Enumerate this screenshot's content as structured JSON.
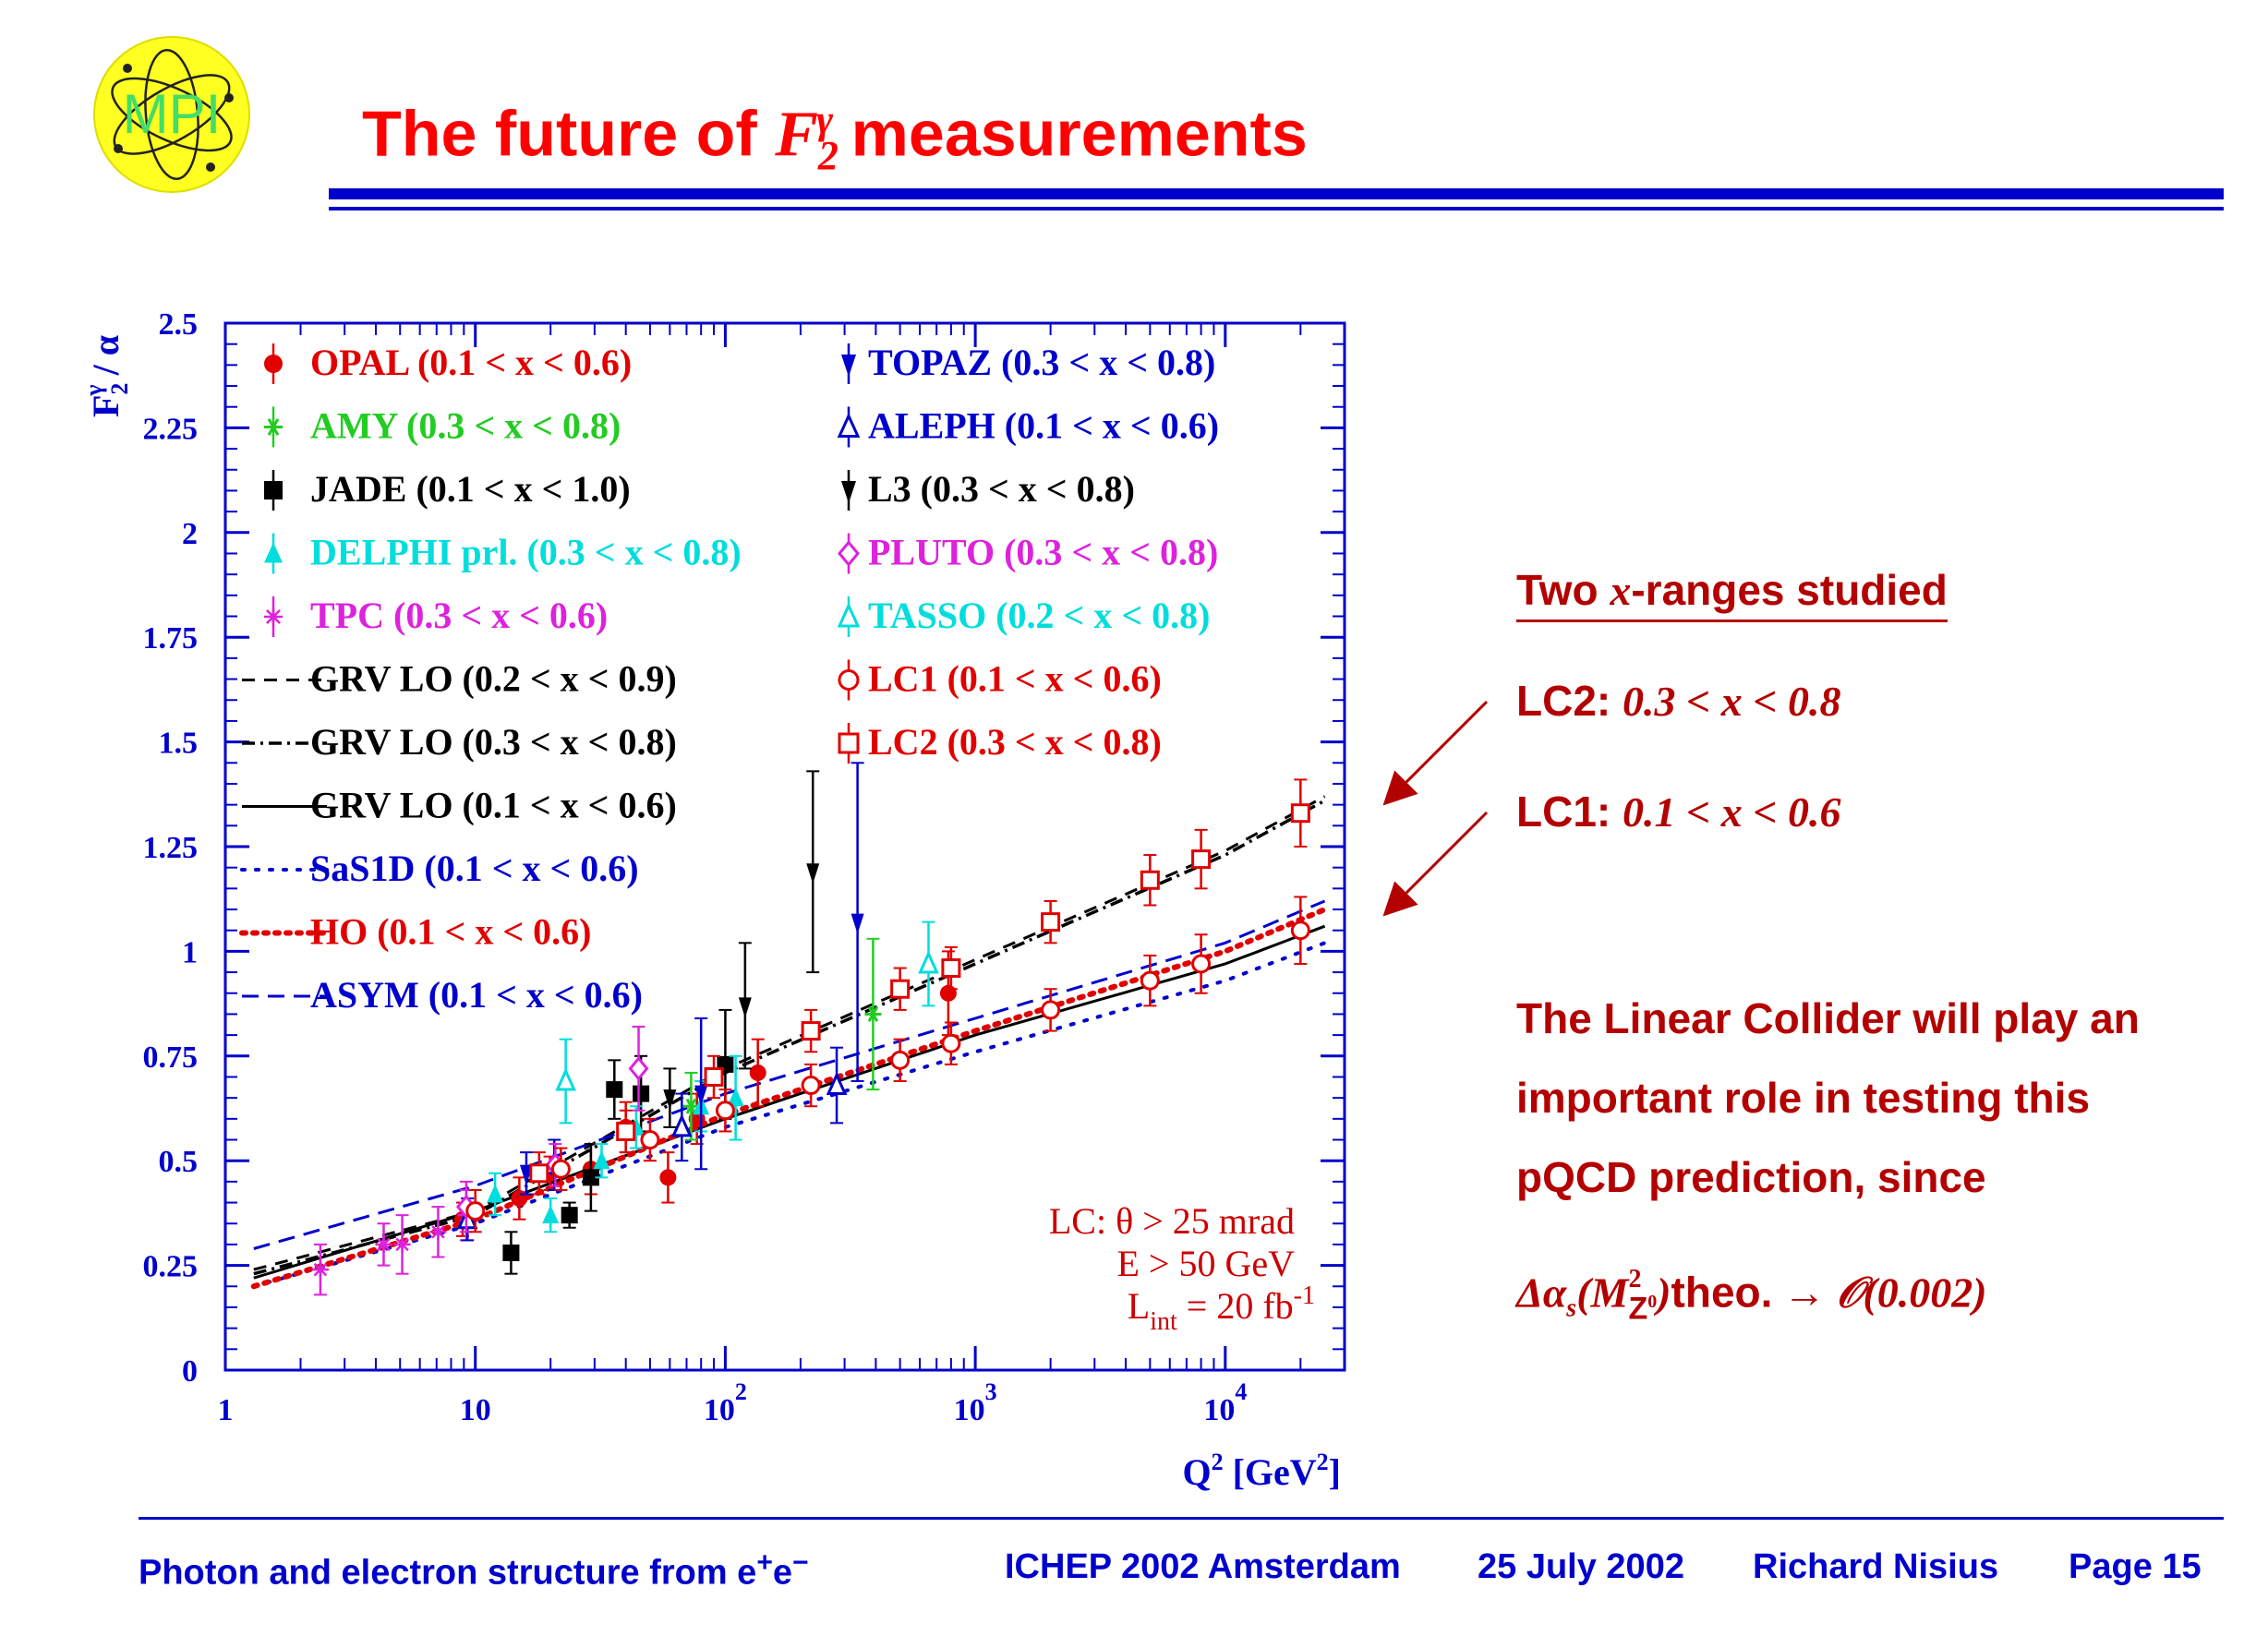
{
  "logo": {
    "text": "MPI"
  },
  "slide": {
    "title_prefix": "The future of ",
    "title_f": "F",
    "title_sub": "2",
    "title_sup": "γ",
    "title_suffix": " measurements"
  },
  "sidebar": {
    "heading_pre": "Two ",
    "heading_x": "x",
    "heading_post": "-ranges studied",
    "lc2_label": "LC2:",
    "lc2_range": "0.3 < x < 0.8",
    "lc1_label": "LC1:",
    "lc1_range": "0.1 < x < 0.6",
    "text_line1": "The Linear Collider will play an",
    "text_line2": "important role in testing this",
    "text_line3": "pQCD prediction, since",
    "formula_delta": "Δα",
    "formula_s": "s",
    "formula_open": "(M",
    "formula_sup": "2",
    "formula_sub": "Z",
    "formula_sub0": "0",
    "formula_close": ")",
    "formula_theo": "theo.",
    "formula_arrow": " → 𝒪(0.002)"
  },
  "footer": {
    "left_text": "Photon and electron structure from e",
    "left_plus": "+",
    "left_e": "e",
    "left_minus": "−",
    "conference": "ICHEP 2002 Amsterdam",
    "date": "25 July 2002",
    "author": "Richard Nisius",
    "page": "Page 15"
  },
  "chart_data": {
    "type": "scatter",
    "xlabel_main": "Q",
    "xlabel_sup": "2",
    "xlabel_unit": " [GeV",
    "xlabel_unit_sup": "2",
    "xlabel_close": "]",
    "ylabel_main": "F",
    "ylabel_sub": "2",
    "ylabel_sup": "γ",
    "ylabel_tail": " / α",
    "xscale": "log",
    "xlim": [
      1,
      30000
    ],
    "ylim": [
      0,
      2.5
    ],
    "yticks": [
      "0",
      "0.25",
      "0.5",
      "0.75",
      "1",
      "1.25",
      "1.5",
      "1.75",
      "2",
      "2.25",
      "2.5"
    ],
    "xtick_labels": [
      {
        "v": 1,
        "base": "1",
        "exp": ""
      },
      {
        "v": 10,
        "base": "10",
        "exp": ""
      },
      {
        "v": 100,
        "base": "10",
        "exp": "2"
      },
      {
        "v": 1000,
        "base": "10",
        "exp": "3"
      },
      {
        "v": 10000,
        "base": "10",
        "exp": "4"
      }
    ],
    "annotation": {
      "line1": "LC: θ > 25 mrad",
      "line2": "E > 50 GeV",
      "line3_main": "L",
      "line3_sub": "int",
      "line3_rest": " = 20 fb",
      "line3_sup": "-1",
      "color": "#cc0000"
    },
    "legend_left": [
      {
        "label": "OPAL (0.1 < x < 0.6)",
        "color": "#e00000",
        "marker": "circle"
      },
      {
        "label": "AMY (0.3 < x < 0.8)",
        "color": "#22cc22",
        "marker": "star"
      },
      {
        "label": "JADE (0.1 < x < 1.0)",
        "color": "#000000",
        "marker": "square"
      },
      {
        "label": "DELPHI prl. (0.3 < x < 0.8)",
        "color": "#00dddd",
        "marker": "triangle"
      },
      {
        "label": "TPC (0.3 < x < 0.6)",
        "color": "#dd22dd",
        "marker": "asterisk"
      },
      {
        "label": "GRV LO (0.2 < x < 0.9)",
        "color": "#000000",
        "marker": "dash"
      },
      {
        "label": "GRV LO (0.3 < x < 0.8)",
        "color": "#000000",
        "marker": "dashdot"
      },
      {
        "label": "GRV LO (0.1 < x < 0.6)",
        "color": "#000000",
        "marker": "solid"
      },
      {
        "label": "SaS1D (0.1 < x < 0.6)",
        "color": "#0000cc",
        "marker": "dotted"
      },
      {
        "label": "HO (0.1 < x < 0.6)",
        "color": "#e00000",
        "marker": "dottedthick"
      },
      {
        "label": "ASYM (0.1 < x < 0.6)",
        "color": "#0000cc",
        "marker": "dashed"
      }
    ],
    "legend_right": [
      {
        "label": "TOPAZ (0.3 < x < 0.8)",
        "color": "#0000cc",
        "marker": "tridown"
      },
      {
        "label": "ALEPH (0.1 < x < 0.6)",
        "color": "#0000cc",
        "marker": "opentriangle"
      },
      {
        "label": "L3 (0.3 < x < 0.8)",
        "color": "#000000",
        "marker": "tridown"
      },
      {
        "label": "PLUTO (0.3 < x < 0.8)",
        "color": "#dd22dd",
        "marker": "opendiamond"
      },
      {
        "label": "TASSO (0.2 < x < 0.8)",
        "color": "#00dddd",
        "marker": "opentriangle"
      },
      {
        "label": "LC1 (0.1 < x < 0.6)",
        "color": "#e00000",
        "marker": "opencircle"
      },
      {
        "label": "LC2 (0.3 < x < 0.8)",
        "color": "#e00000",
        "marker": "opensquare"
      }
    ],
    "series": [
      {
        "name": "OPAL (0.1 < x < 0.6)",
        "marker": "circle",
        "color": "#e00000",
        "points": [
          [
            8.9,
            0.36,
            0.04
          ],
          [
            15,
            0.41,
            0.05
          ],
          [
            19.9,
            0.47,
            0.04
          ],
          [
            29,
            0.48,
            0.06
          ],
          [
            40,
            0.58,
            0.06
          ],
          [
            59,
            0.46,
            0.06
          ],
          [
            77,
            0.6,
            0.06
          ],
          [
            135,
            0.71,
            0.08
          ],
          [
            780,
            0.9,
            0.1
          ]
        ]
      },
      {
        "name": "AMY (0.3 < x < 0.8)",
        "marker": "star",
        "color": "#22cc22",
        "points": [
          [
            73,
            0.63,
            0.08
          ],
          [
            390,
            0.85,
            0.18
          ]
        ]
      },
      {
        "name": "JADE (0.1 < x < 1.0)",
        "marker": "square",
        "color": "#000000",
        "points": [
          [
            13.9,
            0.28,
            0.05
          ],
          [
            23.8,
            0.37,
            0.03
          ],
          [
            29,
            0.46,
            0.08
          ],
          [
            36,
            0.67,
            0.07
          ],
          [
            46,
            0.66,
            0.09
          ],
          [
            100,
            0.73,
            0.13
          ]
        ]
      },
      {
        "name": "DELPHI prl. (0.3 < x < 0.8)",
        "marker": "triangle",
        "color": "#00dddd",
        "points": [
          [
            12,
            0.42,
            0.05
          ],
          [
            20,
            0.37,
            0.04
          ],
          [
            32,
            0.5,
            0.04
          ],
          [
            44,
            0.58,
            0.05
          ],
          [
            80,
            0.63,
            0.06
          ],
          [
            110,
            0.65,
            0.1
          ]
        ]
      },
      {
        "name": "TPC (0.3 < x < 0.6)",
        "marker": "asterisk",
        "color": "#dd22dd",
        "points": [
          [
            2.4,
            0.24,
            0.06
          ],
          [
            4.3,
            0.3,
            0.05
          ],
          [
            5.1,
            0.3,
            0.07
          ],
          [
            7.1,
            0.33,
            0.06
          ],
          [
            9.2,
            0.37,
            0.06
          ]
        ]
      },
      {
        "name": "TOPAZ (0.3 < x < 0.8)",
        "marker": "tridown",
        "color": "#0000cc",
        "points": [
          [
            16,
            0.47,
            0.05
          ],
          [
            80,
            0.66,
            0.18
          ],
          [
            338,
            1.07,
            0.38
          ]
        ]
      },
      {
        "name": "ALEPH (0.1 < x < 0.6)",
        "marker": "opentriangle",
        "color": "#0000cc",
        "points": [
          [
            9.3,
            0.36,
            0.05
          ],
          [
            20.7,
            0.49,
            0.06
          ],
          [
            67,
            0.58,
            0.08
          ],
          [
            279,
            0.68,
            0.09
          ]
        ]
      },
      {
        "name": "L3 (0.3 < x < 0.8)",
        "marker": "tridown",
        "color": "#000000",
        "points": [
          [
            60,
            0.65,
            0.07
          ],
          [
            120,
            0.87,
            0.15
          ],
          [
            224,
            1.19,
            0.24
          ]
        ]
      },
      {
        "name": "PLUTO (0.3 < x < 0.8)",
        "marker": "opendiamond",
        "color": "#dd22dd",
        "points": [
          [
            9.2,
            0.39,
            0.06
          ],
          [
            20.9,
            0.49,
            0.05
          ],
          [
            45,
            0.72,
            0.1
          ]
        ]
      },
      {
        "name": "TASSO (0.2 < x < 0.8)",
        "marker": "opentriangle",
        "color": "#00dddd",
        "points": [
          [
            23,
            0.69,
            0.1
          ],
          [
            650,
            0.97,
            0.1
          ]
        ]
      },
      {
        "name": "LC1 (0.1 < x < 0.6)",
        "marker": "opencircle",
        "color": "#e00000",
        "points": [
          [
            10,
            0.38,
            0.05
          ],
          [
            22,
            0.48,
            0.05
          ],
          [
            50,
            0.55,
            0.05
          ],
          [
            100,
            0.62,
            0.05
          ],
          [
            220,
            0.68,
            0.05
          ],
          [
            500,
            0.74,
            0.05
          ],
          [
            800,
            0.78,
            0.05
          ],
          [
            2000,
            0.86,
            0.05
          ],
          [
            5000,
            0.93,
            0.06
          ],
          [
            8000,
            0.97,
            0.07
          ],
          [
            20000,
            1.05,
            0.08
          ]
        ]
      },
      {
        "name": "LC2 (0.3 < x < 0.8)",
        "marker": "opensquare",
        "color": "#e00000",
        "points": [
          [
            18,
            0.47,
            0.05
          ],
          [
            40,
            0.57,
            0.05
          ],
          [
            90,
            0.7,
            0.05
          ],
          [
            220,
            0.81,
            0.05
          ],
          [
            500,
            0.91,
            0.05
          ],
          [
            800,
            0.96,
            0.05
          ],
          [
            2000,
            1.07,
            0.05
          ],
          [
            5000,
            1.17,
            0.06
          ],
          [
            8000,
            1.22,
            0.07
          ],
          [
            20000,
            1.33,
            0.08
          ]
        ]
      }
    ],
    "curves": [
      {
        "name": "GRV LO (0.2 < x < 0.9)",
        "style": "dash",
        "color": "#000000",
        "points": [
          [
            1.3,
            0.24
          ],
          [
            10,
            0.38
          ],
          [
            100,
            0.72
          ],
          [
            1000,
            0.98
          ],
          [
            10000,
            1.24
          ],
          [
            25000,
            1.37
          ]
        ]
      },
      {
        "name": "GRV LO (0.3 < x < 0.8)",
        "style": "dashdot",
        "color": "#000000",
        "points": [
          [
            1.3,
            0.23
          ],
          [
            10,
            0.37
          ],
          [
            100,
            0.71
          ],
          [
            1000,
            0.97
          ],
          [
            10000,
            1.23
          ],
          [
            25000,
            1.36
          ]
        ]
      },
      {
        "name": "GRV LO (0.1 < x < 0.6)",
        "style": "solid",
        "color": "#000000",
        "points": [
          [
            1.3,
            0.22
          ],
          [
            10,
            0.38
          ],
          [
            100,
            0.6
          ],
          [
            1000,
            0.8
          ],
          [
            10000,
            0.97
          ],
          [
            25000,
            1.06
          ]
        ]
      },
      {
        "name": "SaS1D (0.1 < x < 0.6)",
        "style": "dotted",
        "color": "#0000cc",
        "points": [
          [
            1.3,
            0.2
          ],
          [
            10,
            0.35
          ],
          [
            100,
            0.58
          ],
          [
            1000,
            0.76
          ],
          [
            10000,
            0.93
          ],
          [
            25000,
            1.02
          ]
        ]
      },
      {
        "name": "HO (0.1 < x < 0.6)",
        "style": "dottedthick",
        "color": "#e00000",
        "points": [
          [
            1.3,
            0.2
          ],
          [
            10,
            0.36
          ],
          [
            100,
            0.61
          ],
          [
            1000,
            0.81
          ],
          [
            10000,
            1.0
          ],
          [
            25000,
            1.1
          ]
        ]
      },
      {
        "name": "ASYM (0.1 < x < 0.6)",
        "style": "dashed",
        "color": "#0000cc",
        "points": [
          [
            1.3,
            0.29
          ],
          [
            10,
            0.44
          ],
          [
            100,
            0.66
          ],
          [
            1000,
            0.84
          ],
          [
            10000,
            1.02
          ],
          [
            25000,
            1.12
          ]
        ]
      }
    ]
  },
  "colors": {
    "title": "#ff0000",
    "rule": "#0000cc",
    "sidebar": "#b30000",
    "axis": "#0000cc",
    "logo_fill": "#ffff22"
  }
}
